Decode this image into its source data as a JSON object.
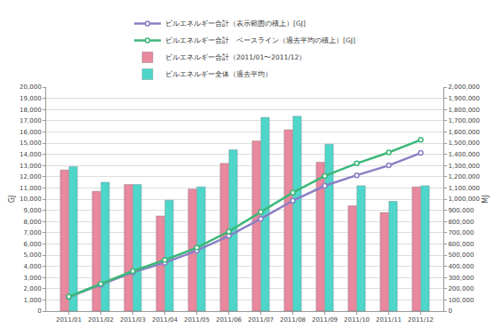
{
  "chart_data": {
    "type": "bar",
    "categories": [
      "2011/01",
      "2011/02",
      "2011/03",
      "2011/04",
      "2011/05",
      "2011/06",
      "2011/07",
      "2011/08",
      "2011/09",
      "2011/10",
      "2011/11",
      "2011/12"
    ],
    "series": [
      {
        "name": "ビルエネルギー合計（表示範囲の積上）[GJ]",
        "type": "line",
        "color": "#8a7fc4",
        "marker": "circle",
        "line_style": "solid",
        "values": [
          1260,
          2330,
          3460,
          4310,
          5400,
          6720,
          8240,
          9860,
          11190,
          12130,
          13010,
          14120
        ]
      },
      {
        "name": "ビルエネルギー合計　ベースライン（過去平均の積上）[GJ]",
        "type": "line",
        "color": "#3cb878",
        "marker": "circle",
        "line_style": "solid",
        "values": [
          1290,
          2440,
          3570,
          4560,
          5670,
          7110,
          8840,
          10580,
          12070,
          13190,
          14170,
          15290
        ]
      },
      {
        "name": "ビルエネルギー合計（2011/01〜2011/12）",
        "type": "bar",
        "color": "#e8899e",
        "axis": "y2",
        "values": [
          1260000,
          1070000,
          1130000,
          850000,
          1090000,
          1320000,
          1520000,
          1620000,
          1330000,
          940000,
          880000,
          1110000
        ]
      },
      {
        "name": "ビルエネルギー全体（過去平均）",
        "type": "bar",
        "color": "#4fd6cb",
        "axis": "y2",
        "values": [
          1290000,
          1150000,
          1130000,
          990000,
          1110000,
          1440000,
          1730000,
          1740000,
          1490000,
          1120000,
          980000,
          1120000
        ]
      }
    ],
    "y_label": "GJ",
    "y2_label": "MJ",
    "ylim": [
      0,
      20000
    ],
    "yticks": [
      0,
      {
        "value": 1000,
        "label": "1,000"
      },
      {
        "value": 2000,
        "label": "2,000"
      },
      {
        "value": 3000,
        "label": "3,000"
      },
      {
        "value": 4000,
        "label": "4,000"
      },
      {
        "value": 5000,
        "label": "5,000"
      },
      {
        "value": 6000,
        "label": "6,000"
      },
      {
        "value": 7000,
        "label": "7,000"
      },
      {
        "value": 8000,
        "label": "8,000"
      },
      {
        "value": 9000,
        "label": "9,000"
      },
      {
        "value": 10000,
        "label": "10,000"
      },
      {
        "value": 11000,
        "label": "11,000"
      },
      {
        "value": 12000,
        "label": "12,000"
      },
      {
        "value": 13000,
        "label": "13,000"
      },
      {
        "value": 14000,
        "label": "14,000"
      },
      {
        "value": 15000,
        "label": "15,000"
      },
      {
        "value": 16000,
        "label": "16,000"
      },
      {
        "value": 17000,
        "label": "17,000"
      },
      {
        "value": 18000,
        "label": "18,000"
      },
      {
        "value": 19000,
        "label": "19,000"
      },
      {
        "value": 20000,
        "label": "20,000"
      }
    ],
    "y2lim": [
      0,
      2000000
    ],
    "y2ticks": [
      0,
      {
        "value": 100000,
        "label": "100,000"
      },
      {
        "value": 200000,
        "label": "200,000"
      },
      {
        "value": 300000,
        "label": "300,000"
      },
      {
        "value": 400000,
        "label": "400,000"
      },
      {
        "value": 500000,
        "label": "500,000"
      },
      {
        "value": 600000,
        "label": "600,000"
      },
      {
        "value": 700000,
        "label": "700,000"
      },
      {
        "value": 800000,
        "label": "800,000"
      },
      {
        "value": 900000,
        "label": "900,000"
      },
      {
        "value": 1000000,
        "label": "1,000,000"
      },
      {
        "value": 1100000,
        "label": "1,100,000"
      },
      {
        "value": 1200000,
        "label": "1,200,000"
      },
      {
        "value": 1300000,
        "label": "1,300,000"
      },
      {
        "value": 1400000,
        "label": "1,400,000"
      },
      {
        "value": 1500000,
        "label": "1,500,000"
      },
      {
        "value": 1600000,
        "label": "1,600,000"
      },
      {
        "value": 1700000,
        "label": "1,700,000"
      },
      {
        "value": 1800000,
        "label": "1,800,000"
      },
      {
        "value": 1900000,
        "label": "1,900,000"
      },
      {
        "value": 2000000,
        "label": "2,000,000"
      }
    ],
    "grid": true,
    "legend": "top"
  }
}
